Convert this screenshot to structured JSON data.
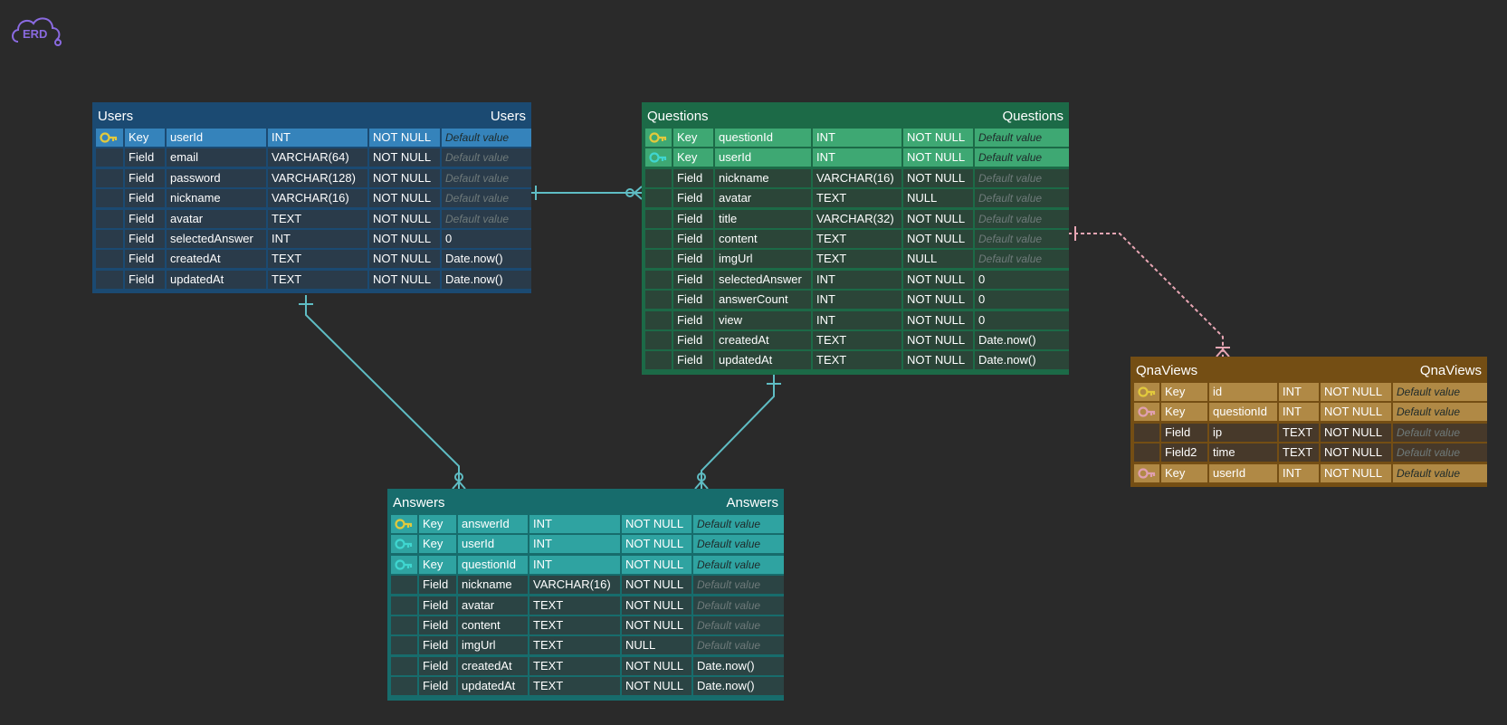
{
  "logo": "ERD",
  "tables": [
    {
      "name": "Users",
      "color": "#1b4a72",
      "key_color": "#3583bb",
      "cell_color": "#2a3b4a",
      "icons": [
        "#e2c93c",
        null,
        null,
        null,
        null,
        null,
        null,
        null
      ],
      "rows": [
        [
          "Key",
          "userId",
          "INT",
          "NOT NULL",
          "Default value"
        ],
        [
          "Field",
          "email",
          "VARCHAR(64)",
          "NOT NULL",
          "Default value"
        ],
        [
          "Field",
          "password",
          "VARCHAR(128)",
          "NOT NULL",
          "Default value"
        ],
        [
          "Field",
          "nickname",
          "VARCHAR(16)",
          "NOT NULL",
          "Default value"
        ],
        [
          "Field",
          "avatar",
          "TEXT",
          "NOT NULL",
          "Default value"
        ],
        [
          "Field",
          "selectedAnswer",
          "INT",
          "NOT NULL",
          "0"
        ],
        [
          "Field",
          "createdAt",
          "TEXT",
          "NOT NULL",
          "Date.now()"
        ],
        [
          "Field",
          "updatedAt",
          "TEXT",
          "NOT NULL",
          "Date.now()"
        ]
      ]
    },
    {
      "name": "Questions",
      "color": "#1c6a47",
      "key_color": "#3ea873",
      "cell_color": "#2b4538",
      "icons": [
        "#e2c93c",
        "#3fd6d0",
        null,
        null,
        null,
        null,
        null,
        null,
        null,
        null,
        null,
        null
      ],
      "rows": [
        [
          "Key",
          "questionId",
          "INT",
          "NOT NULL",
          "Default value"
        ],
        [
          "Key",
          "userId",
          "INT",
          "NOT NULL",
          "Default value"
        ],
        [
          "Field",
          "nickname",
          "VARCHAR(16)",
          "NOT NULL",
          "Default value"
        ],
        [
          "Field",
          "avatar",
          "TEXT",
          "NULL",
          "Default value"
        ],
        [
          "Field",
          "title",
          "VARCHAR(32)",
          "NOT NULL",
          "Default value"
        ],
        [
          "Field",
          "content",
          "TEXT",
          "NOT NULL",
          "Default value"
        ],
        [
          "Field",
          "imgUrl",
          "TEXT",
          "NULL",
          "Default value"
        ],
        [
          "Field",
          "selectedAnswer",
          "INT",
          "NOT NULL",
          "0"
        ],
        [
          "Field",
          "answerCount",
          "INT",
          "NOT NULL",
          "0"
        ],
        [
          "Field",
          "view",
          "INT",
          "NOT NULL",
          "0"
        ],
        [
          "Field",
          "createdAt",
          "TEXT",
          "NOT NULL",
          "Date.now()"
        ],
        [
          "Field",
          "updatedAt",
          "TEXT",
          "NOT NULL",
          "Date.now()"
        ]
      ]
    },
    {
      "name": "Answers",
      "color": "#176c6c",
      "key_color": "#2fa3a1",
      "cell_color": "#2b4444",
      "icons": [
        "#e2c93c",
        "#3fd6d0",
        "#3fd6d0",
        null,
        null,
        null,
        null,
        null,
        null
      ],
      "rows": [
        [
          "Key",
          "answerId",
          "INT",
          "NOT NULL",
          "Default value"
        ],
        [
          "Key",
          "userId",
          "INT",
          "NOT NULL",
          "Default value"
        ],
        [
          "Key",
          "questionId",
          "INT",
          "NOT NULL",
          "Default value"
        ],
        [
          "Field",
          "nickname",
          "VARCHAR(16)",
          "NOT NULL",
          "Default value"
        ],
        [
          "Field",
          "avatar",
          "TEXT",
          "NOT NULL",
          "Default value"
        ],
        [
          "Field",
          "content",
          "TEXT",
          "NOT NULL",
          "Default value"
        ],
        [
          "Field",
          "imgUrl",
          "TEXT",
          "NULL",
          "Default value"
        ],
        [
          "Field",
          "createdAt",
          "TEXT",
          "NOT NULL",
          "Date.now()"
        ],
        [
          "Field",
          "updatedAt",
          "TEXT",
          "NOT NULL",
          "Date.now()"
        ]
      ]
    },
    {
      "name": "QnaViews",
      "color": "#744e14",
      "key_color": "#b08945",
      "cell_color": "#47392a",
      "icons": [
        "#e2c93c",
        "#e0a0b0",
        null,
        null,
        "#e0a0b0"
      ],
      "rows": [
        [
          "Key",
          "id",
          "INT",
          "NOT NULL",
          "Default value"
        ],
        [
          "Key",
          "questionId",
          "INT",
          "NOT NULL",
          "Default value"
        ],
        [
          "Field",
          "ip",
          "TEXT",
          "NOT NULL",
          "Default value"
        ],
        [
          "Field2",
          "time",
          "TEXT",
          "NOT NULL",
          "Default value"
        ],
        [
          "Key",
          "userId",
          "INT",
          "NOT NULL",
          "Default value"
        ]
      ]
    }
  ]
}
